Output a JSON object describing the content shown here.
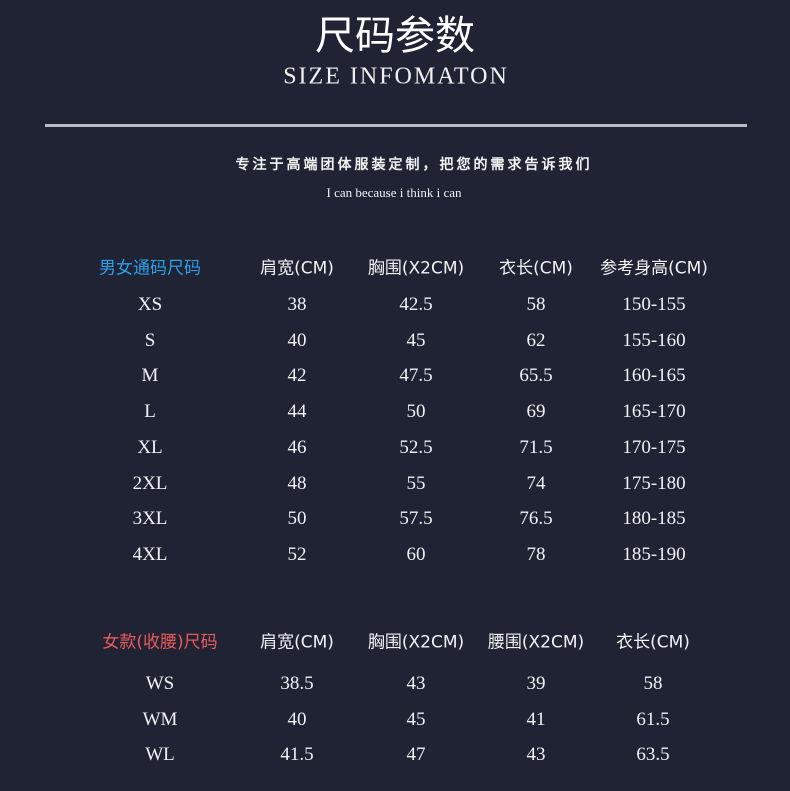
{
  "header": {
    "title": "尺码参数",
    "subtitle": "SIZE INFOMATON",
    "slogan": "专注于高端团体服装定制，把您的需求告诉我们",
    "motto": "I can because i think i can"
  },
  "colors": {
    "background": "#1f2334",
    "unisex_accent": "#2aa0e8",
    "women_accent": "#ec5a5a"
  },
  "unisex_table": {
    "title": "男女通码尺码",
    "columns": [
      "肩宽(CM)",
      "胸围(X2CM)",
      "衣长(CM)",
      "参考身高(CM)"
    ],
    "rows": [
      [
        "XS",
        "38",
        "42.5",
        "58",
        "150-155"
      ],
      [
        "S",
        "40",
        "45",
        "62",
        "155-160"
      ],
      [
        "M",
        "42",
        "47.5",
        "65.5",
        "160-165"
      ],
      [
        "L",
        "44",
        "50",
        "69",
        "165-170"
      ],
      [
        "XL",
        "46",
        "52.5",
        "71.5",
        "170-175"
      ],
      [
        "2XL",
        "48",
        "55",
        "74",
        "175-180"
      ],
      [
        "3XL",
        "50",
        "57.5",
        "76.5",
        "180-185"
      ],
      [
        "4XL",
        "52",
        "60",
        "78",
        "185-190"
      ]
    ]
  },
  "women_table": {
    "title": "女款(收腰)尺码",
    "columns": [
      "肩宽(CM)",
      "胸围(X2CM)",
      "腰围(X2CM)",
      "衣长(CM)"
    ],
    "rows": [
      [
        "WS",
        "38.5",
        "43",
        "39",
        "58"
      ],
      [
        "WM",
        "40",
        "45",
        "41",
        "61.5"
      ],
      [
        "WL",
        "41.5",
        "47",
        "43",
        "63.5"
      ]
    ]
  }
}
